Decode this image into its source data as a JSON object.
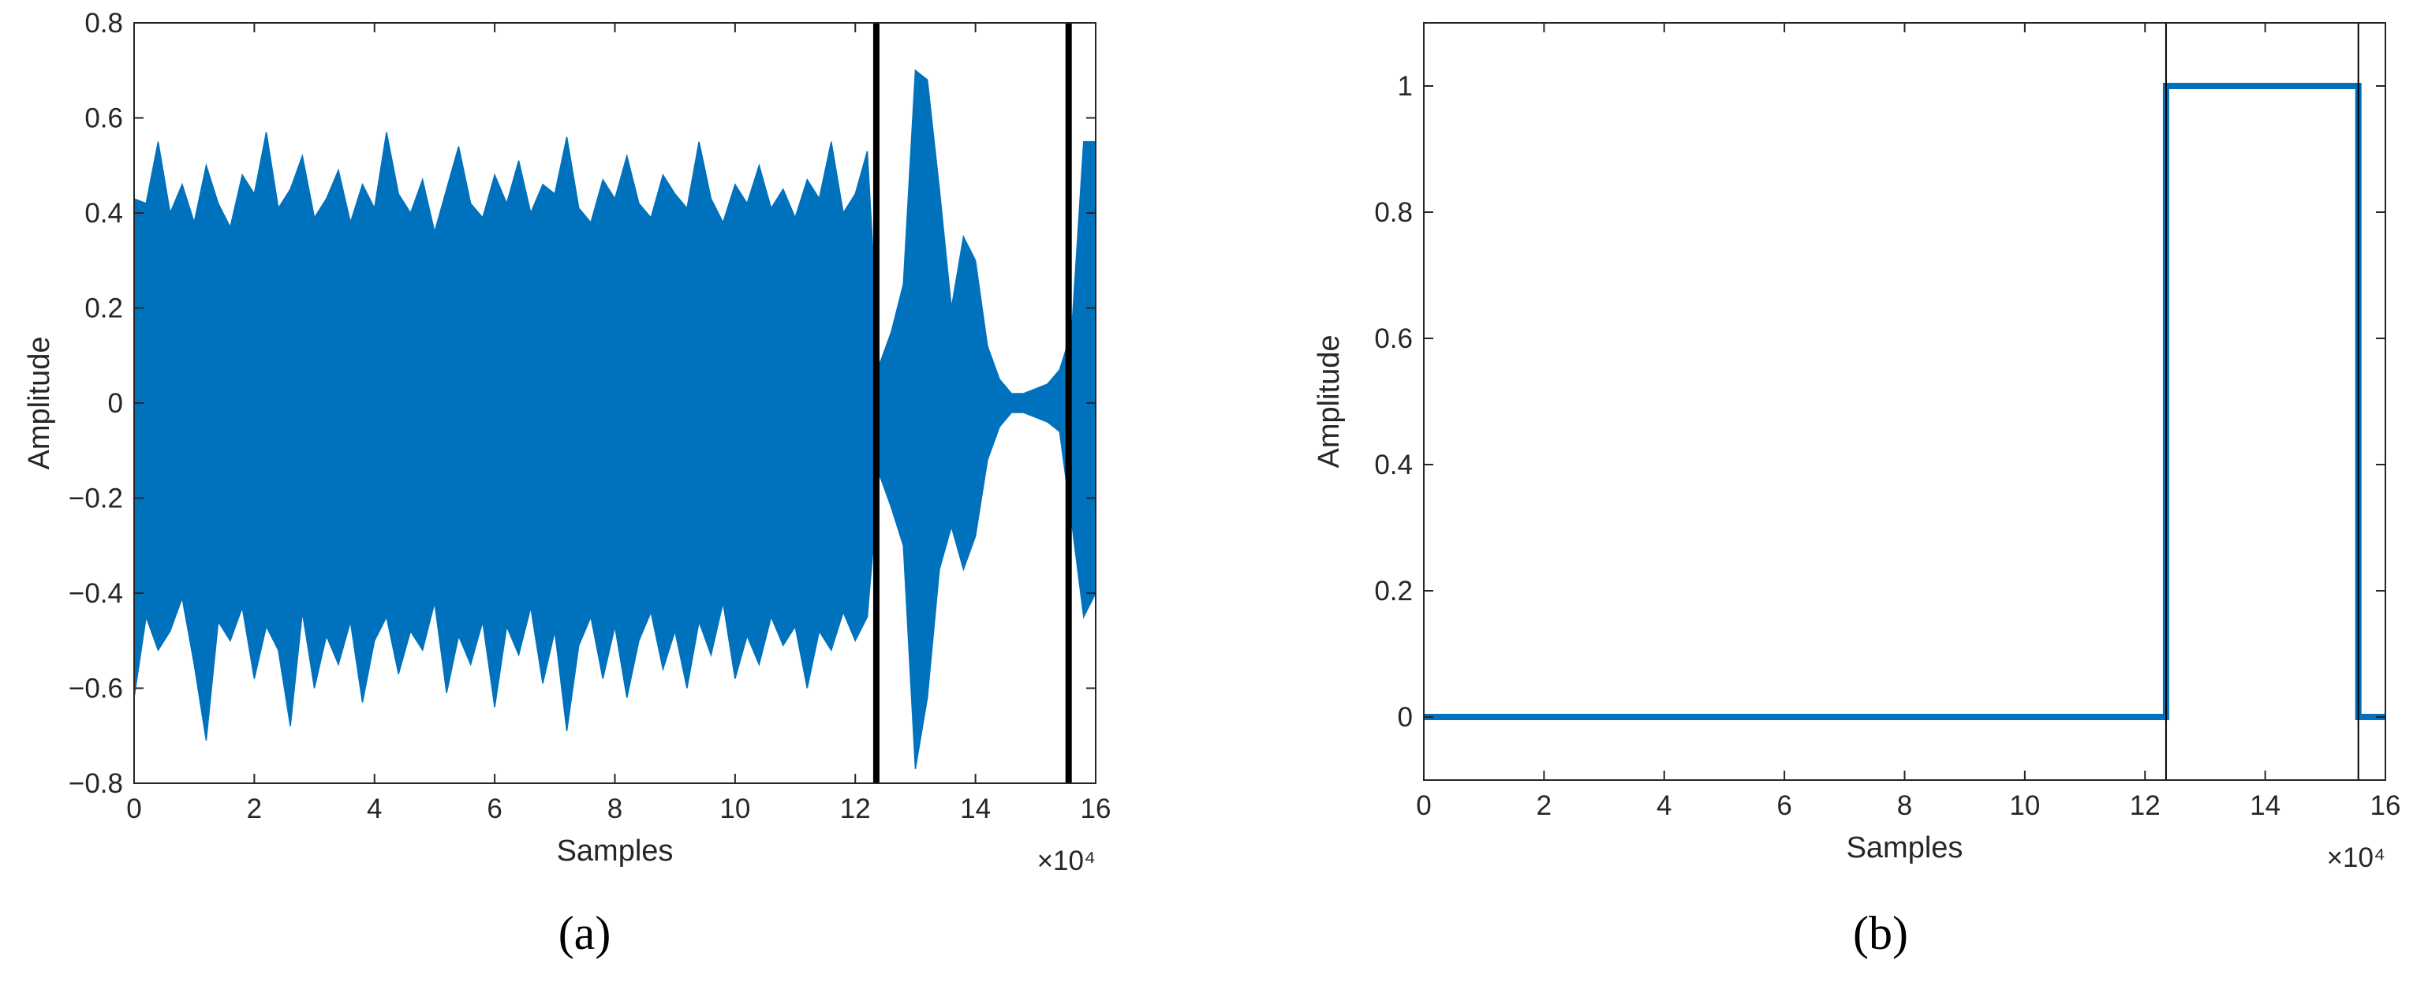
{
  "chart_data": [
    {
      "type": "area",
      "panel_label": "(a)",
      "x_label": "Samples",
      "y_label": "Amplitude",
      "x_exponent_label": "×10⁴",
      "xlim": [
        0,
        160000
      ],
      "ylim": [
        -0.8,
        0.8
      ],
      "xticks": [
        0,
        {
          "value": 20000,
          "label": "2"
        },
        {
          "value": 40000,
          "label": "4"
        },
        {
          "value": 60000,
          "label": "6"
        },
        {
          "value": 80000,
          "label": "8"
        },
        {
          "value": 100000,
          "label": "10"
        },
        {
          "value": 120000,
          "label": "12"
        },
        {
          "value": 140000,
          "label": "14"
        },
        {
          "value": 160000,
          "label": "16"
        }
      ],
      "yticks": [
        {
          "value": -0.8,
          "label": "−0.8"
        },
        {
          "value": -0.6,
          "label": "−0.6"
        },
        {
          "value": -0.4,
          "label": "−0.4"
        },
        {
          "value": -0.2,
          "label": "−0.2"
        },
        0,
        0.2,
        0.4,
        0.6,
        0.8
      ],
      "vlines": [
        123500,
        155500
      ],
      "vline_color": "#000000",
      "x": [
        0,
        2000,
        4000,
        6000,
        8000,
        10000,
        12000,
        14000,
        16000,
        18000,
        20000,
        22000,
        24000,
        26000,
        28000,
        30000,
        32000,
        34000,
        36000,
        38000,
        40000,
        42000,
        44000,
        46000,
        48000,
        50000,
        52000,
        54000,
        56000,
        58000,
        60000,
        62000,
        64000,
        66000,
        68000,
        70000,
        72000,
        74000,
        76000,
        78000,
        80000,
        82000,
        84000,
        86000,
        88000,
        90000,
        92000,
        94000,
        96000,
        98000,
        100000,
        102000,
        104000,
        106000,
        108000,
        110000,
        112000,
        114000,
        116000,
        118000,
        120000,
        122000,
        124000,
        126000,
        128000,
        130000,
        132000,
        134000,
        136000,
        138000,
        140000,
        142000,
        144000,
        146000,
        148000,
        150000,
        152000,
        154000,
        156000,
        158000,
        160000
      ],
      "series": [
        {
          "color": "#0072bd",
          "values": [
            0.43,
            0.42,
            0.55,
            0.4,
            0.46,
            0.38,
            0.5,
            0.42,
            0.37,
            0.48,
            0.44,
            0.57,
            0.41,
            0.45,
            0.52,
            0.39,
            0.43,
            0.49,
            0.38,
            0.46,
            0.41,
            0.57,
            0.44,
            0.4,
            0.47,
            0.36,
            0.45,
            0.54,
            0.42,
            0.39,
            0.48,
            0.42,
            0.51,
            0.4,
            0.46,
            0.44,
            0.56,
            0.41,
            0.38,
            0.47,
            0.43,
            0.52,
            0.42,
            0.39,
            0.48,
            0.44,
            0.41,
            0.55,
            0.43,
            0.38,
            0.46,
            0.42,
            0.5,
            0.41,
            0.45,
            0.39,
            0.47,
            0.43,
            0.55,
            0.4,
            0.44,
            0.53,
            0.08,
            0.15,
            0.25,
            0.7,
            0.68,
            0.45,
            0.2,
            0.35,
            0.3,
            0.12,
            0.05,
            0.02,
            0.02,
            0.03,
            0.04,
            0.07,
            0.15,
            0.55,
            0.55
          ]
        },
        {
          "color": "#0072bd",
          "values": [
            -0.62,
            -0.45,
            -0.52,
            -0.48,
            -0.41,
            -0.55,
            -0.71,
            -0.46,
            -0.5,
            -0.43,
            -0.58,
            -0.47,
            -0.52,
            -0.68,
            -0.44,
            -0.6,
            -0.49,
            -0.55,
            -0.46,
            -0.63,
            -0.5,
            -0.45,
            -0.57,
            -0.48,
            -0.52,
            -0.42,
            -0.61,
            -0.49,
            -0.55,
            -0.46,
            -0.64,
            -0.47,
            -0.53,
            -0.43,
            -0.59,
            -0.48,
            -0.69,
            -0.51,
            -0.45,
            -0.58,
            -0.47,
            -0.62,
            -0.5,
            -0.44,
            -0.56,
            -0.48,
            -0.6,
            -0.46,
            -0.53,
            -0.42,
            -0.58,
            -0.49,
            -0.55,
            -0.45,
            -0.51,
            -0.47,
            -0.6,
            -0.48,
            -0.52,
            -0.44,
            -0.5,
            -0.45,
            -0.15,
            -0.22,
            -0.3,
            -0.77,
            -0.62,
            -0.35,
            -0.26,
            -0.35,
            -0.28,
            -0.12,
            -0.05,
            -0.02,
            -0.02,
            -0.03,
            -0.04,
            -0.06,
            -0.25,
            -0.45,
            -0.4
          ]
        }
      ]
    },
    {
      "type": "line",
      "panel_label": "(b)",
      "x_label": "Samples",
      "y_label": "Amplitude",
      "x_exponent_label": "×10⁴",
      "xlim": [
        0,
        160000
      ],
      "ylim": [
        -0.1,
        1.1
      ],
      "xticks": [
        0,
        {
          "value": 20000,
          "label": "2"
        },
        {
          "value": 40000,
          "label": "4"
        },
        {
          "value": 60000,
          "label": "6"
        },
        {
          "value": 80000,
          "label": "8"
        },
        {
          "value": 100000,
          "label": "10"
        },
        {
          "value": 120000,
          "label": "12"
        },
        {
          "value": 140000,
          "label": "14"
        },
        {
          "value": 160000,
          "label": "16"
        }
      ],
      "yticks": [
        0,
        0.2,
        0.4,
        0.6,
        0.8,
        1
      ],
      "vlines": [
        123500,
        155500
      ],
      "vline_color": "#000000",
      "x": [
        0,
        123500,
        123500,
        155500,
        155500,
        160000
      ],
      "series": [
        {
          "color": "#0072bd",
          "values": [
            0,
            0,
            1,
            1,
            0,
            0
          ]
        }
      ]
    }
  ]
}
